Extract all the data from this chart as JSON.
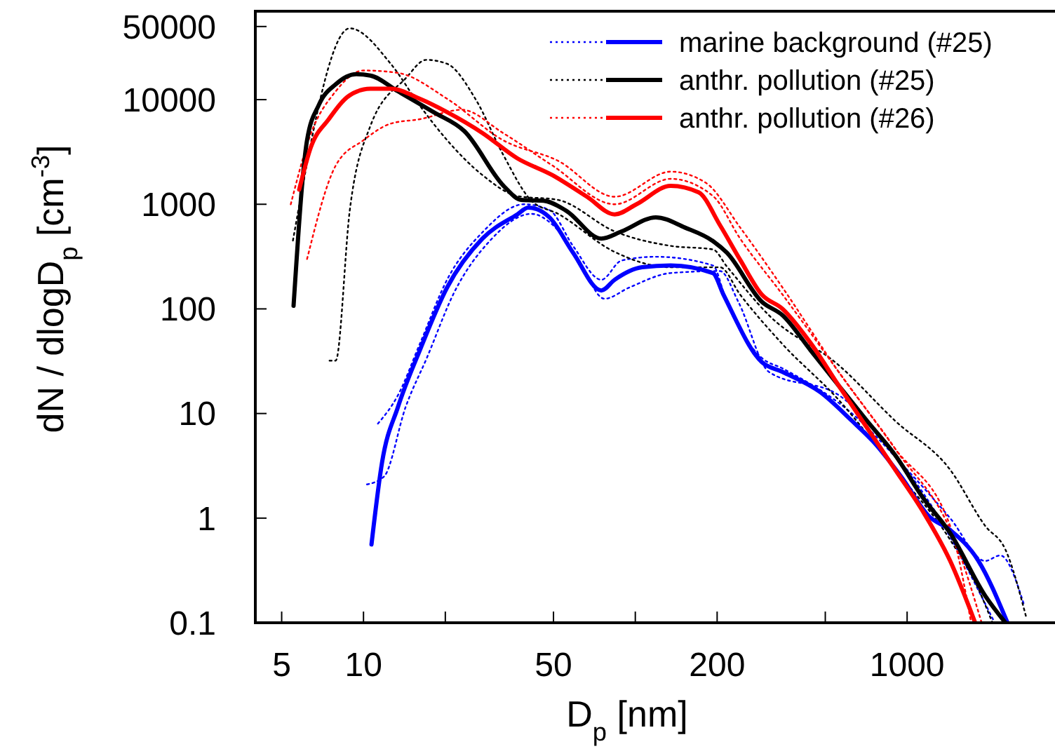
{
  "chart_data": {
    "type": "line",
    "log": "xy",
    "xlabel": "D$_{p}$ [nm]",
    "ylabel": "dN / dlogD$_{p}$ [cm$^{-3}$]",
    "legend": "top right",
    "xlim": [
      4,
      3500
    ],
    "ylim": [
      0.1,
      70000
    ],
    "xticks": [
      5,
      10,
      {
        "value": 20,
        "label": null
      },
      50,
      {
        "value": 100,
        "label": null
      },
      200,
      {
        "value": 500,
        "label": null
      },
      1000
    ],
    "yticks": [
      0.1,
      1,
      10,
      100,
      1000,
      10000,
      50000
    ],
    "series": [
      {
        "color": "#0000ff",
        "line_style": "dotted",
        "x": [
          11.3,
          13.4,
          16.1,
          20.3,
          27.4,
          39,
          48.3,
          59,
          75,
          89,
          119,
          193,
          217,
          292,
          348,
          627,
          1000,
          1440,
          1940,
          2200,
          2700
        ],
        "values": [
          8,
          15,
          46,
          190,
          540,
          1000,
          880,
          400,
          190,
          290,
          315,
          260,
          115,
          34,
          27,
          10,
          2.9,
          1,
          0.39,
          0.44,
          0.145
        ]
      },
      {
        "color": "#0000ff",
        "line_style": "dotted",
        "x": [
          10.3,
          11.9,
          14.3,
          17.1,
          21.6,
          29,
          41.5,
          49.5,
          62,
          77,
          95,
          135,
          205,
          240,
          310,
          560,
          904,
          1270,
          2100
        ],
        "values": [
          2.1,
          2.5,
          11.6,
          34,
          145,
          440,
          810,
          640,
          290,
          125,
          160,
          220,
          230,
          115,
          25,
          15,
          4,
          1.15,
          0.1
        ]
      },
      {
        "color": "#000000",
        "line_style": "dotted",
        "x": [
          5.5,
          8.9,
          12.6,
          16.1,
          20.3,
          27.4,
          36.8,
          52,
          84,
          135,
          193,
          217,
          310,
          560,
          904,
          1440,
          1940,
          2300,
          2750
        ],
        "values": [
          450,
          48000,
          22000,
          8800,
          4100,
          1900,
          1200,
          1100,
          550,
          400,
          370,
          255,
          87,
          29,
          8.5,
          2.9,
          0.84,
          0.5,
          0.11
        ]
      },
      {
        "color": "#000000",
        "line_style": "dotted",
        "x": [
          7.5,
          7.9,
          8.9,
          10.6,
          14.3,
          17,
          20.3,
          25.9,
          32.6,
          41.5,
          52,
          84,
          135,
          205,
          243,
          348,
          560,
          904,
          1440,
          1830,
          2060
        ],
        "values": [
          32,
          32,
          870,
          5600,
          16000,
          24000,
          22000,
          10000,
          3000,
          1080,
          810,
          350,
          250,
          250,
          137,
          46,
          13.5,
          2.9,
          0.62,
          0.21,
          0.1
        ]
      },
      {
        "color": "#ff0000",
        "line_style": "dotted",
        "x": [
          6.2,
          7.9,
          10,
          12.6,
          16.1,
          23,
          32.6,
          49.5,
          84,
          135,
          193,
          243,
          348,
          560,
          904,
          1440,
          1720
        ],
        "values": [
          300,
          2340,
          4100,
          5900,
          6500,
          8000,
          4800,
          2350,
          1000,
          1750,
          1200,
          470,
          137,
          25,
          4.6,
          0.84,
          0.1
        ]
      },
      {
        "color": "#ff0000",
        "line_style": "dotted",
        "x": [
          5.4,
          6.4,
          7.9,
          10,
          13.4,
          20.3,
          32.6,
          52,
          84,
          135,
          182,
          243,
          348,
          560,
          904,
          1530,
          1880
        ],
        "values": [
          1000,
          4700,
          12000,
          19000,
          18000,
          10200,
          4100,
          2600,
          1180,
          2050,
          1600,
          600,
          160,
          25,
          4.6,
          0.53,
          0.1
        ]
      },
      {
        "name": "marine background (#25)",
        "color": "#0000ff",
        "line_style": "solid",
        "x": [
          10.7,
          11.7,
          13.4,
          16.1,
          20.3,
          27.4,
          36.8,
          40.4,
          48.3,
          59,
          75,
          84,
          106,
          135,
          193,
          211,
          292,
          348,
          479,
          627,
          750,
          950,
          1205,
          1440,
          1830,
          2340
        ],
        "values": [
          0.56,
          3.4,
          11.6,
          40,
          160,
          470,
          800,
          930,
          750,
          345,
          150,
          190,
          250,
          260,
          220,
          137,
          31,
          25,
          16,
          8.5,
          5.4,
          2.5,
          1.04,
          0.77,
          0.39,
          0.1
        ]
      },
      {
        "name": "anthr. pollution (#25)",
        "color": "#000000",
        "line_style": "solid",
        "x": [
          5.53,
          6.2,
          6.85,
          7.9,
          9.4,
          10.6,
          13.4,
          18.1,
          23.5,
          33,
          38,
          46,
          55.6,
          75,
          89,
          119,
          152,
          193,
          217,
          292,
          348,
          442,
          560,
          712,
          904,
          1145,
          1440,
          1940,
          2300
        ],
        "values": [
          107,
          4100,
          8900,
          14000,
          17500,
          17000,
          12000,
          7600,
          5000,
          1470,
          1100,
          1080,
          870,
          470,
          550,
          750,
          600,
          445,
          345,
          117,
          87,
          40,
          18.5,
          8.5,
          4,
          1.56,
          0.72,
          0.18,
          0.1
        ]
      },
      {
        "name": "anthr. pollution (#26)",
        "color": "#ff0000",
        "line_style": "solid",
        "x": [
          5.8,
          6.4,
          7.45,
          8.9,
          10.6,
          12.6,
          16.1,
          20.3,
          27.4,
          36.8,
          49.5,
          66.4,
          84,
          101,
          135,
          171,
          205,
          243,
          292,
          348,
          442,
          560,
          712,
          904,
          1145,
          1440,
          1780
        ],
        "values": [
          1380,
          3500,
          6500,
          11000,
          12700,
          12700,
          10200,
          7600,
          4800,
          2750,
          1900,
          1180,
          800,
          1000,
          1500,
          1300,
          630,
          295,
          137,
          100,
          47,
          18.5,
          7.3,
          2.9,
          1.15,
          0.39,
          0.1
        ]
      }
    ]
  }
}
